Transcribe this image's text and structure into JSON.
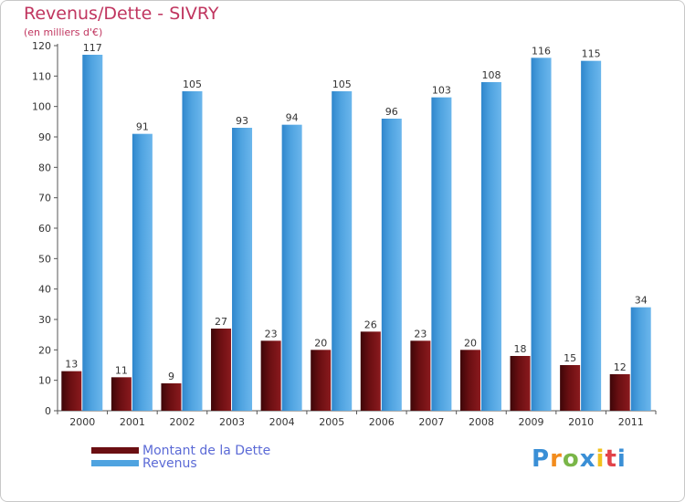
{
  "header": {
    "title": "Revenus/Dette - SIVRY",
    "subtitle": "(en milliers d'€)"
  },
  "colors": {
    "dette": "#6b0f12",
    "revenus": "#4fa3e0",
    "title": "#c0355f",
    "legend_text": "#5b6ad6"
  },
  "chart_data": {
    "type": "bar",
    "title": "Revenus/Dette - SIVRY",
    "subtitle": "(en milliers d'€)",
    "xlabel": "",
    "ylabel": "",
    "categories": [
      "2000",
      "2001",
      "2002",
      "2003",
      "2004",
      "2005",
      "2006",
      "2007",
      "2008",
      "2009",
      "2010",
      "2011"
    ],
    "series": [
      {
        "name": "Montant de la Dette",
        "color": "#6b0f12",
        "values": [
          13,
          11,
          9,
          27,
          23,
          20,
          26,
          23,
          20,
          18,
          15,
          12
        ]
      },
      {
        "name": "Revenus",
        "color": "#4fa3e0",
        "values": [
          117,
          91,
          105,
          93,
          94,
          105,
          96,
          103,
          108,
          116,
          115,
          34
        ]
      }
    ],
    "ylim": [
      0,
      120
    ],
    "yticks": [
      0,
      10,
      20,
      30,
      40,
      50,
      60,
      70,
      80,
      90,
      100,
      110,
      120
    ],
    "grid": false,
    "legend_position": "bottom-left"
  },
  "legend": {
    "items": [
      {
        "label": "Montant de la Dette",
        "color": "#6b0f12"
      },
      {
        "label": "Revenus",
        "color": "#4fa3e0"
      }
    ]
  },
  "logo": {
    "letters": [
      "P",
      "r",
      "o",
      "x",
      "i",
      "t",
      "i"
    ],
    "colors": [
      "#3a8fd6",
      "#f28c1e",
      "#7ab648",
      "#3a8fd6",
      "#f2c21e",
      "#e2444a",
      "#3a8fd6"
    ]
  }
}
